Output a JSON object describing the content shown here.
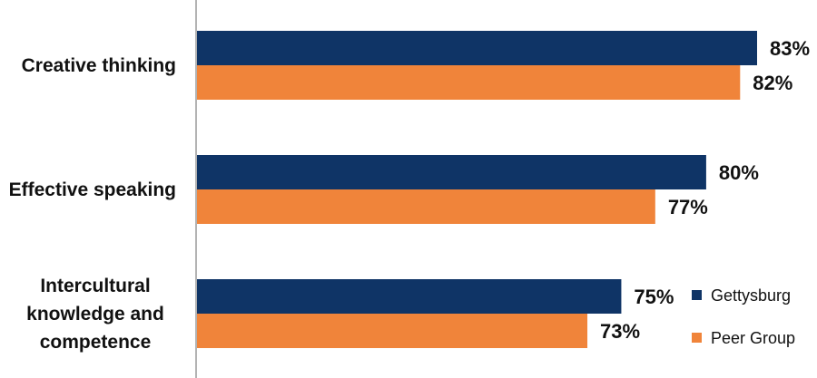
{
  "chart_data": {
    "type": "bar",
    "orientation": "horizontal",
    "categories": [
      [
        "Creative thinking"
      ],
      [
        "Effective speaking"
      ],
      [
        "Intercultural",
        "knowledge and",
        "competence"
      ]
    ],
    "series": [
      {
        "name": "Gettysburg",
        "color": "#0f3466",
        "values": [
          83,
          80,
          75
        ],
        "labels": [
          "83%",
          "80%",
          "75%"
        ]
      },
      {
        "name": "Peer Group",
        "color": "#f0843a",
        "values": [
          82,
          77,
          73
        ],
        "labels": [
          "82%",
          "77%",
          "73%"
        ]
      }
    ],
    "xlim": [
      50,
      85
    ],
    "grid": false,
    "legend": "bottom-right",
    "title": "",
    "xlabel": "",
    "ylabel": ""
  }
}
